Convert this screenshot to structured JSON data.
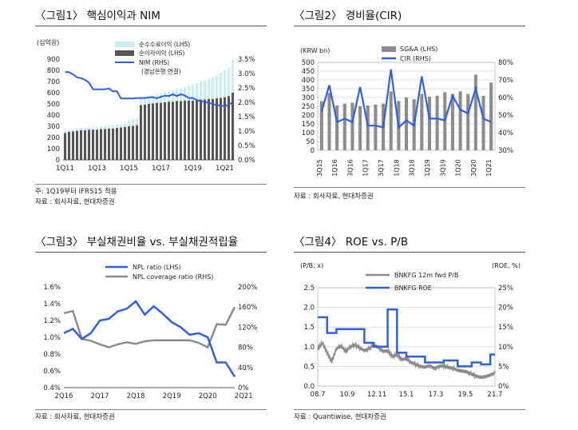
{
  "figures": [
    {
      "title": "〈그림1〉 핵심이익과 NIM",
      "notes": [
        "주: 1Q19부터 IFRS15 적용",
        "자료 : 회사자료, 현대차증권"
      ]
    },
    {
      "title": "〈그림2〉 경비율(CIR)",
      "notes": [
        "자료 : 회사자료, 현대차증권"
      ]
    },
    {
      "title": "〈그림3〉 부실채권비율 vs. 부실채권적립율",
      "notes": [
        "자료 : 회사자료, 현대차증권"
      ]
    },
    {
      "title": "〈그림4〉 ROE vs. P/B",
      "notes": [
        "자료 : Quantiwise, 현대차증권"
      ]
    }
  ],
  "colors": {
    "blue": "#2f5fe3",
    "gray": "#8c8c8c",
    "dark": "#555555",
    "cyan": "#c9eef4"
  },
  "chart_data": [
    {
      "id": "fig1",
      "type": "bar",
      "unit_label": "(십억원)",
      "series": [
        {
          "name": "순수수료이익  (LHS)",
          "kind": "bar",
          "axis": "left",
          "values": [
            20,
            20,
            22,
            24,
            25,
            25,
            26,
            25,
            27,
            27,
            28,
            28,
            29,
            30,
            30,
            30,
            55,
            60,
            60,
            62,
            70,
            75,
            75,
            80,
            85,
            90,
            95,
            100,
            110,
            115,
            120,
            130,
            140,
            150,
            160,
            170,
            180,
            190,
            200,
            220,
            240,
            260,
            300
          ]
        },
        {
          "name": "순이자이익  (LHS)",
          "kind": "bar",
          "axis": "left",
          "values": [
            240,
            250,
            255,
            260,
            265,
            265,
            270,
            270,
            270,
            275,
            275,
            280,
            280,
            285,
            290,
            295,
            300,
            305,
            310,
            490,
            495,
            500,
            505,
            510,
            510,
            515,
            520,
            520,
            525,
            525,
            530,
            530,
            530,
            535,
            540,
            540,
            545,
            545,
            550,
            555,
            560,
            570,
            600
          ]
        },
        {
          "name": "NIM  (RHS)",
          "kind": "line",
          "axis": "right",
          "values": [
            3.05,
            3.05,
            2.97,
            2.87,
            2.84,
            2.78,
            2.68,
            2.45,
            2.45,
            2.45,
            2.45,
            2.48,
            2.38,
            2.38,
            2.14,
            2.13,
            2.13,
            2.13,
            2.15,
            2.15,
            2.15,
            2.17,
            2.18,
            2.14,
            2.19,
            2.23,
            2.22,
            2.28,
            2.22,
            2.28,
            2.24,
            2.15,
            2.15,
            2.08,
            2.04,
            2.01,
            1.98,
            1.94,
            1.9,
            1.88,
            1.86,
            1.92,
            2.0
          ]
        }
      ],
      "annotation": "(경남은행  연결)",
      "xticks": [
        "1Q11",
        "1Q13",
        "1Q15",
        "1Q17",
        "1Q19",
        "1Q21"
      ],
      "yleft": {
        "min": 0,
        "max": 900,
        "ticks": [
          "0",
          "100",
          "200",
          "300",
          "400",
          "500",
          "600",
          "700",
          "800",
          "900"
        ]
      },
      "yright": {
        "min": 0,
        "max": 3.5,
        "ticks": [
          "0.0%",
          "0.5%",
          "1.0%",
          "1.5%",
          "2.0%",
          "2.5%",
          "3.0%",
          "3.5%"
        ]
      }
    },
    {
      "id": "fig2",
      "type": "bar",
      "unit_label": "(KRW bn)",
      "series": [
        {
          "name": "SG&A  (LHS)",
          "kind": "bar",
          "axis": "left",
          "values": [
            280,
            325,
            255,
            265,
            270,
            250,
            255,
            260,
            265,
            335,
            280,
            300,
            290,
            320,
            305,
            310,
            330,
            320,
            335,
            320,
            430,
            310,
            385
          ]
        },
        {
          "name": "CIR  (RHS)",
          "kind": "line",
          "axis": "right",
          "values": [
            52,
            67,
            46,
            48,
            46,
            66,
            44,
            44,
            43,
            76,
            43,
            47,
            44,
            72,
            48,
            48,
            47,
            61,
            53,
            51,
            65,
            48,
            46
          ]
        }
      ],
      "xticks": [
        "3Q15",
        "1Q16",
        "3Q16",
        "1Q17",
        "3Q17",
        "1Q18",
        "3Q18",
        "1Q19",
        "3Q19",
        "1Q20",
        "3Q20",
        "1Q21"
      ],
      "yleft": {
        "min": 0,
        "max": 500,
        "ticks": [
          "0",
          "50",
          "100",
          "150",
          "200",
          "250",
          "300",
          "350",
          "400",
          "450",
          "500"
        ]
      },
      "yright": {
        "min": 30,
        "max": 80,
        "ticks": [
          "30%",
          "40%",
          "50%",
          "60%",
          "70%",
          "80%"
        ]
      }
    },
    {
      "id": "fig3",
      "type": "line",
      "series": [
        {
          "name": "NPL ratio (LHS)",
          "axis": "left",
          "values": [
            1.05,
            1.1,
            0.98,
            1.05,
            1.2,
            1.22,
            1.31,
            1.34,
            1.43,
            1.27,
            1.37,
            1.28,
            1.18,
            1.12,
            1.03,
            1.05,
            1.0,
            0.7,
            0.7,
            0.53
          ]
        },
        {
          "name": "NPL coverage ratio (RHS)",
          "axis": "right",
          "values": [
            148,
            152,
            97,
            93,
            86,
            80,
            86,
            90,
            87,
            92,
            94,
            94,
            94,
            94,
            94,
            89,
            80,
            126,
            125,
            160
          ]
        }
      ],
      "xticks": [
        "2Q16",
        "2Q17",
        "2Q18",
        "2Q19",
        "2Q20",
        "2Q21"
      ],
      "yleft": {
        "min": 0.4,
        "max": 1.6,
        "ticks": [
          "0.4%",
          "0.6%",
          "0.8%",
          "1.0%",
          "1.2%",
          "1.4%",
          "1.6%"
        ]
      },
      "yright": {
        "min": 0,
        "max": 200,
        "ticks": [
          "0%",
          "40%",
          "80%",
          "120%",
          "160%",
          "200%"
        ]
      }
    },
    {
      "id": "fig4",
      "type": "line",
      "left_label": "(P/B,  x)",
      "right_label": "(ROE,  %)",
      "series": [
        {
          "name": "BNKFG 12m fwd P/B",
          "axis": "left",
          "values": [
            0.95,
            1.1,
            0.85,
            0.62,
            0.95,
            1.02,
            0.88,
            1.0,
            1.05,
            0.97,
            0.9,
            0.95,
            1.05,
            0.98,
            0.88,
            0.9,
            0.75,
            0.8,
            0.67,
            0.7,
            0.6,
            0.55,
            0.5,
            0.48,
            0.52,
            0.45,
            0.5,
            0.52,
            0.47,
            0.45,
            0.4,
            0.38,
            0.36,
            0.3,
            0.25,
            0.22,
            0.24,
            0.28,
            0.33
          ]
        },
        {
          "name": "BNKFG ROE",
          "axis": "right",
          "step": true,
          "values": [
            17.5,
            17.5,
            13.5,
            13.5,
            14.5,
            14.5,
            14.5,
            14.5,
            14.5,
            14.5,
            11,
            11,
            10,
            10,
            10,
            19.5,
            19.5,
            8.5,
            8.5,
            7.5,
            7.5,
            7.5,
            7.5,
            6,
            6,
            6,
            6,
            6.5,
            6.5,
            6.5,
            5,
            5,
            5,
            6,
            6,
            5.5,
            5.5,
            8,
            8
          ]
        }
      ],
      "xticks": [
        "08.7",
        "10.9",
        "12.11",
        "15.1",
        "17.3",
        "19.5",
        "21.7"
      ],
      "yleft": {
        "min": 0,
        "max": 2.5,
        "ticks": [
          "0.0",
          "0.5",
          "1.0",
          "1.5",
          "2.0",
          "2.5"
        ]
      },
      "yright": {
        "min": 0,
        "max": 25,
        "ticks": [
          "0%",
          "5%",
          "10%",
          "15%",
          "20%",
          "25%"
        ]
      }
    }
  ]
}
